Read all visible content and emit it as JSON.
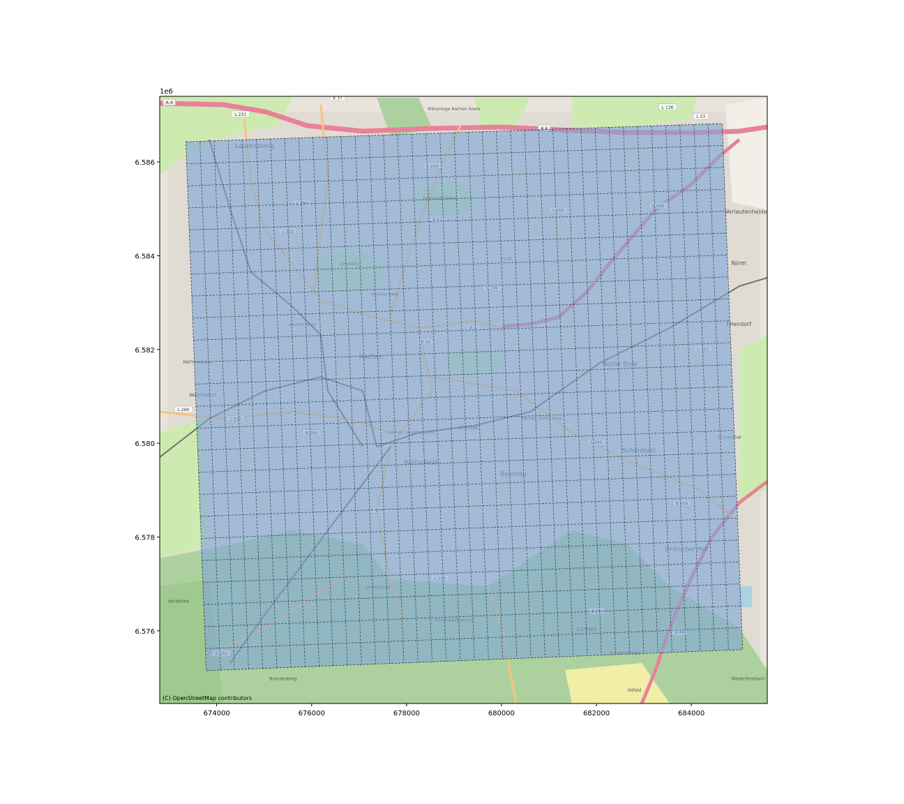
{
  "figure": {
    "axis_offset_label": "1e6",
    "attribution": "(C) OpenStreetMap contributors",
    "colors": {
      "overlay_fill": "#7ea6d8",
      "grid_line": "#333333",
      "map_background": "#e8e4dc",
      "motorway": "#e8829a",
      "forest": "#add19e",
      "meadow": "#cdebb0"
    }
  },
  "chart_data": {
    "type": "map-grid",
    "xlim": [
      672800,
      685600
    ],
    "ylim": [
      6574450,
      6587400
    ],
    "x_ticks": [
      674000,
      676000,
      678000,
      680000,
      682000,
      684000
    ],
    "x_tick_labels": [
      "674000",
      "676000",
      "678000",
      "680000",
      "682000",
      "684000"
    ],
    "y_ticks": [
      6576000,
      6578000,
      6580000,
      6582000,
      6584000,
      6586000
    ],
    "y_tick_labels": [
      "6.576",
      "6.578",
      "6.580",
      "6.582",
      "6.584",
      "6.586"
    ],
    "grid_polygon_corners": {
      "top_left": [
        673350,
        6586430
      ],
      "top_right": [
        684650,
        6586820
      ],
      "bottom_right": [
        685080,
        6575600
      ],
      "bottom_left": [
        673780,
        6575150
      ]
    },
    "grid_columns": 38,
    "grid_rows": 24
  },
  "map_labels": {
    "places": [
      {
        "text": "Laurensberg",
        "x": 674800,
        "y": 6586300,
        "size": 9
      },
      {
        "text": "Aachen",
        "x": 677250,
        "y": 6581800,
        "size": 9
      },
      {
        "text": "Burtscheid",
        "x": 678300,
        "y": 6579550,
        "size": 9
      },
      {
        "text": "Beverau",
        "x": 680250,
        "y": 6579300,
        "size": 9
      },
      {
        "text": "Schönforst",
        "x": 682900,
        "y": 6579800,
        "size": 9
      },
      {
        "text": "Driescher Hof",
        "x": 683900,
        "y": 6577700,
        "size": 9
      },
      {
        "text": "Rothe Erde",
        "x": 682500,
        "y": 6581650,
        "size": 9
      },
      {
        "text": "Viertel",
        "x": 679300,
        "y": 6580300,
        "size": 9
      },
      {
        "text": "Verlautenheide",
        "x": 685150,
        "y": 6584900,
        "size": 8
      },
      {
        "text": "Nirm",
        "x": 685000,
        "y": 6583800,
        "size": 9
      },
      {
        "text": "Eilendorf",
        "x": 685000,
        "y": 6582500,
        "size": 8
      },
      {
        "text": "Linteri",
        "x": 681800,
        "y": 6576000,
        "size": 9
      },
      {
        "text": "Hohenwaldhausen",
        "x": 679000,
        "y": 6576200,
        "size": 6
      },
      {
        "text": "Kreuzerdriesch",
        "x": 682600,
        "y": 6575500,
        "size": 6
      },
      {
        "text": "Niederforstbach",
        "x": 685200,
        "y": 6574950,
        "size": 6
      },
      {
        "text": "Hitfeld",
        "x": 682800,
        "y": 6574700,
        "size": 6
      },
      {
        "text": "Karlshöhe",
        "x": 673200,
        "y": 6576600,
        "size": 6
      },
      {
        "text": "Brandenberg",
        "x": 675400,
        "y": 6574950,
        "size": 6
      },
      {
        "text": "Steinebrück",
        "x": 677400,
        "y": 6576900,
        "size": 6
      },
      {
        "text": "Salvatorberg",
        "x": 677550,
        "y": 6583150,
        "size": 6
      },
      {
        "text": "Aachen West",
        "x": 675800,
        "y": 6582500,
        "size": 6
      },
      {
        "text": "Aachen Hauptbahnhof",
        "x": 678100,
        "y": 6580200,
        "size": 6
      },
      {
        "text": "Aachen Rothe Erde",
        "x": 680850,
        "y": 6580500,
        "size": 6
      },
      {
        "text": "Lousberg",
        "x": 676800,
        "y": 6583800,
        "size": 6
      },
      {
        "text": "Westfriedhof",
        "x": 673700,
        "y": 6581000,
        "size": 6
      },
      {
        "text": "RWTH Aachen",
        "x": 673600,
        "y": 6581700,
        "size": 6
      },
      {
        "text": "Grünenthal",
        "x": 684800,
        "y": 6580100,
        "size": 6
      },
      {
        "text": "Kläranlage Aachen-Soers",
        "x": 679000,
        "y": 6587100,
        "size": 6
      },
      {
        "text": "Sportpark Soers",
        "x": 678700,
        "y": 6585200,
        "size": 6
      },
      {
        "text": "Tivoli",
        "x": 680100,
        "y": 6583900,
        "size": 6
      }
    ],
    "roads": [
      {
        "text": "A 4",
        "x": 673000,
        "y": 6587250
      },
      {
        "text": "L 231",
        "x": 674500,
        "y": 6587000
      },
      {
        "text": "K 37",
        "x": 676550,
        "y": 6587350
      },
      {
        "text": "L 136",
        "x": 683500,
        "y": 6587150
      },
      {
        "text": "L 23",
        "x": 684200,
        "y": 6586950
      },
      {
        "text": "A 4",
        "x": 680900,
        "y": 6586700
      },
      {
        "text": "L 244",
        "x": 678550,
        "y": 6585900
      },
      {
        "text": "L 260",
        "x": 675800,
        "y": 6585100
      },
      {
        "text": "L 232",
        "x": 675500,
        "y": 6584500
      },
      {
        "text": "B 57",
        "x": 678650,
        "y": 6584750
      },
      {
        "text": "L 260",
        "x": 681200,
        "y": 6584950
      },
      {
        "text": "A 544",
        "x": 683300,
        "y": 6585050
      },
      {
        "text": "L 136",
        "x": 679800,
        "y": 6583300
      },
      {
        "text": "B 1",
        "x": 679400,
        "y": 6582450
      },
      {
        "text": "B 1a",
        "x": 678400,
        "y": 6582150
      },
      {
        "text": "L 221",
        "x": 684250,
        "y": 6582000
      },
      {
        "text": "L 260",
        "x": 673300,
        "y": 6580700
      },
      {
        "text": "L 232",
        "x": 674400,
        "y": 6580500
      },
      {
        "text": "B 264",
        "x": 676000,
        "y": 6580200
      },
      {
        "text": "L 260",
        "x": 682000,
        "y": 6580000
      },
      {
        "text": "B 258",
        "x": 683800,
        "y": 6578700
      },
      {
        "text": "B 57",
        "x": 677450,
        "y": 6578550
      },
      {
        "text": "L 233",
        "x": 678700,
        "y": 6577100
      },
      {
        "text": "K 35",
        "x": 682000,
        "y": 6576400
      },
      {
        "text": "B 264",
        "x": 674100,
        "y": 6575500
      },
      {
        "text": "A 44",
        "x": 683750,
        "y": 6575950
      }
    ]
  }
}
